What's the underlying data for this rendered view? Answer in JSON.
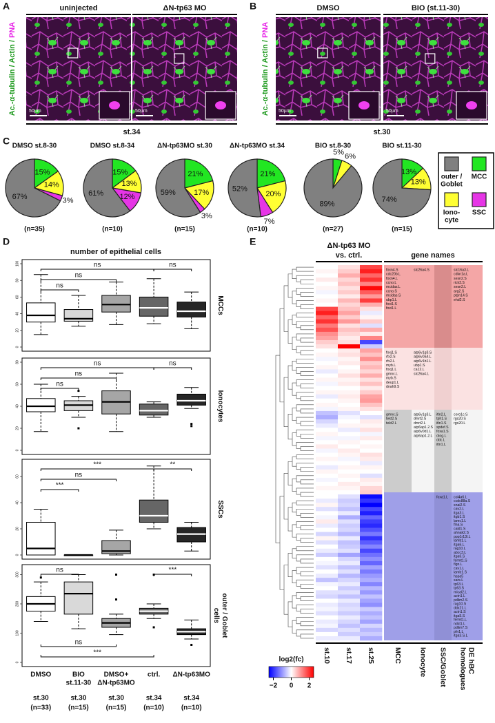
{
  "panel_labels": [
    "A",
    "B",
    "C",
    "D",
    "E"
  ],
  "panel_a": {
    "channel_label": [
      {
        "text": "Ac.-α-tubulin / Actin /",
        "color": "#1f9a1f"
      },
      {
        "text": " PNA",
        "color": "#e61ee6"
      }
    ],
    "images": [
      "uninjected",
      "ΔN-tp63 MO"
    ],
    "stage": "st.34",
    "scale_bar": "50µm"
  },
  "panel_b": {
    "channel_label": [
      {
        "text": "Ac.-α-tubulin / Actin /",
        "color": "#1f9a1f"
      },
      {
        "text": " PNA",
        "color": "#e61ee6"
      }
    ],
    "images": [
      "DMSO",
      "BIO (st.11-30)"
    ],
    "stage": "st.30",
    "scale_bar": "50µm"
  },
  "panel_c": {
    "legend": [
      {
        "lines": [
          "outer /",
          "Goblet"
        ],
        "color": "#808080"
      },
      {
        "lines": [
          "MCC"
        ],
        "color": "#22e622"
      },
      {
        "lines": [
          "Iono-",
          "cyte"
        ],
        "color": "#ffff33"
      },
      {
        "lines": [
          "SSC"
        ],
        "color": "#e635e6"
      }
    ]
  },
  "panel_d": {
    "title": "number of epithelial cells",
    "groups": [
      {
        "name": [
          "DMSO"
        ],
        "stage": "st.30",
        "n": "(n=33)",
        "color": "#ffffff"
      },
      {
        "name": [
          "BIO",
          "st.11-30"
        ],
        "stage": "st.30",
        "n": "(n=15)",
        "color": "#d9d9d9"
      },
      {
        "name": [
          "DMSO+",
          "ΔN-tp63MO"
        ],
        "stage": "st.30",
        "n": "(n=15)",
        "color": "#a6a6a6"
      },
      {
        "name": [
          "ctrl."
        ],
        "stage": "st.34",
        "n": "(n=10)",
        "color": "#666666"
      },
      {
        "name": [
          "ΔN-tp63MO"
        ],
        "stage": "st.34",
        "n": "(n=10)",
        "color": "#262626"
      }
    ]
  },
  "chart_data": [
    {
      "type": "pie",
      "title": "DMSO st.8-30",
      "note": "(n=35)",
      "values": [
        67,
        15,
        14,
        3
      ],
      "value_labels": [
        "67%",
        "15%",
        "14%",
        "3%"
      ]
    },
    {
      "type": "pie",
      "title": "DMSO st.8-34",
      "note": "(n=10)",
      "values": [
        61,
        15,
        13,
        12
      ],
      "value_labels": [
        "61%",
        "15%",
        "13%",
        "12%"
      ]
    },
    {
      "type": "pie",
      "title": "ΔN-tp63MO st.30",
      "note": "(n=15)",
      "values": [
        59,
        21,
        17,
        3
      ],
      "value_labels": [
        "59%",
        "21%",
        "17%",
        "3%"
      ]
    },
    {
      "type": "pie",
      "title": "ΔN-tp63MO st.34",
      "note": "(n=10)",
      "values": [
        52,
        21,
        20,
        7
      ],
      "value_labels": [
        "52%",
        "21%",
        "20%",
        "7%"
      ]
    },
    {
      "type": "pie",
      "title": "BIO st.8-30",
      "note": "(n=27)",
      "values": [
        89,
        5,
        6,
        null
      ],
      "value_labels": [
        "89%",
        "5%",
        "6%",
        null
      ]
    },
    {
      "type": "pie",
      "title": "BIO st.11-30",
      "note": "(n=15)",
      "values": [
        74,
        13,
        13,
        null
      ],
      "value_labels": [
        "74%",
        "13%",
        "13%",
        null
      ]
    },
    {
      "type": "box",
      "ylabel": [
        "MCCs"
      ],
      "ylim": [
        0,
        100
      ],
      "yticks": [
        0,
        20,
        40,
        60,
        80,
        100
      ],
      "boxes": [
        {
          "min": 15,
          "q1": 30,
          "median": 38,
          "q3": 53,
          "max": 87,
          "outliers": []
        },
        {
          "min": 25,
          "q1": 31,
          "median": 34,
          "q3": 45,
          "max": 62,
          "outliers": []
        },
        {
          "min": 27,
          "q1": 42,
          "median": 51,
          "q3": 62,
          "max": 78,
          "outliers": []
        },
        {
          "min": 28,
          "q1": 37,
          "median": 47,
          "q3": 60,
          "max": 82,
          "outliers": []
        },
        {
          "min": 22,
          "q1": 36,
          "median": 43,
          "q3": 54,
          "max": 66,
          "outliers": []
        }
      ],
      "comparisons": [
        {
          "groups": [
            0,
            3
          ],
          "label": "ns",
          "side": "above"
        },
        {
          "groups": [
            3,
            4
          ],
          "label": "ns",
          "side": "above"
        },
        {
          "groups": [
            0,
            2
          ],
          "label": "ns",
          "side": "above"
        },
        {
          "groups": [
            0,
            1
          ],
          "label": "ns",
          "side": "above"
        }
      ]
    },
    {
      "type": "box",
      "ylabel": [
        "Ionocytes"
      ],
      "ylim": [
        0,
        80
      ],
      "yticks": [
        0,
        20,
        40,
        60,
        80
      ],
      "boxes": [
        {
          "min": 17,
          "q1": 35,
          "median": 40,
          "q3": 47,
          "max": 60,
          "outliers": []
        },
        {
          "min": 30,
          "q1": 36,
          "median": 41,
          "q3": 45,
          "max": 49,
          "outliers": [
            20,
            54
          ]
        },
        {
          "min": 17,
          "q1": 33,
          "median": 44,
          "q3": 54,
          "max": 70,
          "outliers": []
        },
        {
          "min": 30,
          "q1": 32,
          "median": 36,
          "q3": 42,
          "max": 44,
          "outliers": []
        },
        {
          "min": 38,
          "q1": 41,
          "median": 45,
          "q3": 51,
          "max": 57,
          "outliers": [
            22,
            24
          ]
        }
      ],
      "comparisons": [
        {
          "groups": [
            0,
            3
          ],
          "label": "ns",
          "side": "above"
        },
        {
          "groups": [
            3,
            4
          ],
          "label": "ns",
          "side": "above"
        },
        {
          "groups": [
            0,
            2
          ],
          "label": "ns",
          "side": "above"
        },
        {
          "groups": [
            0,
            1
          ],
          "label": "ns",
          "side": "above"
        }
      ]
    },
    {
      "type": "box",
      "ylabel": [
        "SSCs"
      ],
      "ylim": [
        0,
        70
      ],
      "yticks": [
        0,
        20,
        40,
        60
      ],
      "boxes": [
        {
          "min": 0,
          "q1": 0,
          "median": 5,
          "q3": 25,
          "max": 35,
          "outliers": []
        },
        {
          "min": 0,
          "q1": 0,
          "median": 0,
          "q3": 0,
          "max": 0,
          "outliers": []
        },
        {
          "min": 0,
          "q1": 1,
          "median": 3,
          "q3": 11,
          "max": 19,
          "outliers": []
        },
        {
          "min": 20,
          "q1": 25,
          "median": 30,
          "q3": 42,
          "max": 68,
          "outliers": []
        },
        {
          "min": 3,
          "q1": 10,
          "median": 16,
          "q3": 21,
          "max": 25,
          "outliers": []
        }
      ],
      "comparisons": [
        {
          "groups": [
            3,
            4
          ],
          "label": "**",
          "side": "above"
        },
        {
          "groups": [
            0,
            3
          ],
          "label": "***",
          "side": "above"
        },
        {
          "groups": [
            0,
            2
          ],
          "label": "ns",
          "side": "above"
        },
        {
          "groups": [
            0,
            1
          ],
          "label": "***",
          "side": "above"
        }
      ]
    },
    {
      "type": "box",
      "ylabel": [
        "outer / Goblet",
        "cells"
      ],
      "ylim": [
        0,
        320
      ],
      "yticks": [
        0,
        100,
        200,
        300
      ],
      "boxes": [
        {
          "min": 140,
          "q1": 175,
          "median": 200,
          "q3": 225,
          "max": 275,
          "outliers": [
            290
          ]
        },
        {
          "min": 115,
          "q1": 165,
          "median": 235,
          "q3": 275,
          "max": 300,
          "outliers": []
        },
        {
          "min": 95,
          "q1": 120,
          "median": 135,
          "q3": 150,
          "max": 165,
          "outliers": [
            300,
            215
          ]
        },
        {
          "min": 150,
          "q1": 165,
          "median": 175,
          "q3": 185,
          "max": 200,
          "outliers": [
            300,
            120
          ]
        },
        {
          "min": 80,
          "q1": 95,
          "median": 105,
          "q3": 115,
          "max": 145,
          "outliers": [
            60
          ]
        }
      ],
      "comparisons": [
        {
          "groups": [
            0,
            1
          ],
          "label": "ns",
          "side": "above"
        },
        {
          "groups": [
            3,
            4
          ],
          "label": "***",
          "side": "above"
        },
        {
          "groups": [
            0,
            3
          ],
          "label": "***",
          "side": "below"
        },
        {
          "groups": [
            0,
            2
          ],
          "label": "ns",
          "side": "below"
        }
      ]
    }
  ],
  "panel_e": {
    "title": "ΔN-tp63 MO",
    "subtitle": "vs. ctrl.",
    "gene_header": "gene names",
    "columns": [
      "st.10",
      "st.17",
      "st.25"
    ],
    "legend_title": "log2(fc)",
    "clim": [
      -2.5,
      2.5
    ],
    "cticks": [
      {
        "value": -2,
        "label": "−2"
      },
      0,
      2
    ],
    "gene_columns": [
      {
        "label": [
          "MCC"
        ],
        "blocks": [
          [
            "foxn4.S",
            "cdc20b.L",
            "foxn4.L",
            "ccno.L",
            "mcidas.L",
            "ccno.S",
            "mcidas.S",
            "ubp1.L",
            "foxi1.S",
            "foxi1.L"
          ],
          [
            "foxj1.S",
            "rfx2.S",
            "rfx2.L",
            "myb.L",
            "foxj1.L",
            "gmnc.L",
            "myb.S",
            "deup1.L",
            "dnah9.S"
          ],
          [
            "gmnc.S",
            "tekt2.S",
            "tekt2.L"
          ],
          []
        ]
      },
      {
        "label": [
          "Ionocyte"
        ],
        "blocks": [
          [
            "slc26a4.S"
          ],
          [
            "atp6v1g3.S",
            "atp6v0a4.L",
            "atp6v1b1.L",
            "ubp1.S",
            "ca12.L",
            "slc26a4.L"
          ],
          [
            "atp6v1g3.L",
            "dmrt2.S",
            "dmrt2.L",
            "atp6ap1.2.S",
            "atp6v0d1.L",
            "atp6ap1.2.L"
          ],
          []
        ]
      },
      {
        "label": [
          "SSC/Goblet"
        ],
        "blocks": [
          [],
          [],
          [
            "itln2.L",
            "tph1.S",
            "itln1.S",
            "spdef.S",
            "foxa1.S",
            "otog.L",
            "ddc.L",
            "itln1.L"
          ],
          [
            "foxa1.L"
          ]
        ]
      },
      {
        "label": [
          "DE hBC",
          "homologues"
        ],
        "blocks": [
          [
            "slc16a3.L",
            "cdkn1a.L",
            "sesn2.S",
            "rick3.S",
            "sesn2.L",
            "arg2.S",
            "ptpn14.S",
            "ehd2.S"
          ],
          [],
          [
            "coro1c.S",
            "rgs20.S",
            "rgs20.L"
          ],
          [
            "col4a6.L",
            "ccdc88a.S",
            "snai2.S",
            "cav2.L",
            "itga3.L",
            "itgb1.S",
            "lamc1.L",
            "flna.S",
            "cald1.S",
            "ahnak2.S",
            "ppp1r13l.L",
            "lamb1.L",
            "itga6.L",
            "rag10.L",
            "abcc3.L",
            "itga6.S",
            "fermt1.S",
            "flgn.L",
            "cav1.L",
            "lamb1.S",
            "hspa5",
            "sars.L",
            "tp63.L",
            "tp63.S",
            "mical2.L",
            "actn1.L",
            "pdlim2.S",
            "rag10.S",
            "ddx21.L",
            "actn1.S",
            "itga5.S",
            "fermt1.L",
            "ndst1.L",
            "pdlim7.S",
            "pfn1.L",
            "itga3.S.L"
          ]
        ]
      }
    ],
    "values": [
      [
        0,
        0.3,
        1.8
      ],
      [
        0.1,
        0.5,
        2.2
      ],
      [
        0,
        0.8,
        1.5
      ],
      [
        0.2,
        0.4,
        2.0
      ],
      [
        0,
        0.6,
        1.2
      ],
      [
        0.1,
        0.3,
        2.4
      ],
      [
        -0.1,
        0.5,
        1.6
      ],
      [
        0,
        0.2,
        1.0
      ],
      [
        0.1,
        0.7,
        1.9
      ],
      [
        0,
        0.4,
        0.8
      ],
      [
        1.8,
        0.6,
        0.3
      ],
      [
        2.2,
        0.9,
        -0.2
      ],
      [
        1.5,
        0.5,
        0.1
      ],
      [
        2.0,
        1.0,
        0.5
      ],
      [
        1.3,
        0.3,
        -0.3
      ],
      [
        1.7,
        0.6,
        0.8
      ],
      [
        1.1,
        0.4,
        0.2
      ],
      [
        0.9,
        0.2,
        1.2
      ],
      [
        0.5,
        0.3,
        -1.8
      ],
      [
        0.3,
        2.5,
        -0.5
      ],
      [
        0,
        0.2,
        0.9
      ],
      [
        0.1,
        0.3,
        0.6
      ],
      [
        -0.1,
        0.1,
        1.1
      ],
      [
        0,
        0.2,
        0.5
      ],
      [
        0.1,
        0,
        0.7
      ],
      [
        -0.2,
        0.1,
        0.4
      ],
      [
        0,
        0.3,
        0.8
      ],
      [
        0.1,
        0.1,
        0.3
      ],
      [
        -0.1,
        0.2,
        0.6
      ],
      [
        0,
        0,
        0.2
      ],
      [
        0.1,
        0.1,
        0.5
      ],
      [
        -0.2,
        0.2,
        0.9
      ],
      [
        0,
        0.1,
        1.0
      ],
      [
        0.1,
        0,
        0.6
      ],
      [
        -0.1,
        0.1,
        0.3
      ],
      [
        -0.6,
        -0.3,
        0
      ],
      [
        -0.8,
        -0.1,
        -0.3
      ],
      [
        -0.4,
        0,
        0.2
      ],
      [
        -0.2,
        0.1,
        0.1
      ],
      [
        0,
        -0.2,
        0.3
      ],
      [
        0.1,
        0,
        -0.1
      ],
      [
        -0.1,
        -0.1,
        0.2
      ],
      [
        0,
        0.1,
        0
      ],
      [
        0.2,
        0,
        0.1
      ],
      [
        -0.1,
        0.2,
        0
      ],
      [
        0,
        0.1,
        0.3
      ],
      [
        0.1,
        -0.1,
        0.2
      ],
      [
        0,
        0,
        -0.2
      ],
      [
        -0.2,
        0.1,
        0.1
      ],
      [
        0.1,
        0,
        0
      ],
      [
        0,
        0.1,
        -0.3
      ],
      [
        -0.1,
        0,
        0.2
      ],
      [
        0,
        0.2,
        0.1
      ],
      [
        0.1,
        0.1,
        0.4
      ],
      [
        0,
        0,
        0.5
      ],
      [
        0,
        -0.3,
        -2.4
      ],
      [
        -0.2,
        -0.5,
        -2.0
      ],
      [
        0.1,
        -0.4,
        -2.6
      ],
      [
        -0.3,
        -0.6,
        -1.8
      ],
      [
        0,
        -0.2,
        -2.2
      ],
      [
        -0.1,
        -0.8,
        -1.5
      ],
      [
        0.2,
        -0.3,
        -1.9
      ],
      [
        -0.2,
        -0.5,
        -2.1
      ],
      [
        0,
        -0.4,
        -1.7
      ],
      [
        -0.4,
        -0.7,
        -1.3
      ],
      [
        0.1,
        -0.2,
        -2.0
      ],
      [
        -0.3,
        -0.6,
        -1.6
      ],
      [
        0,
        -0.5,
        -1.2
      ],
      [
        -0.2,
        -0.3,
        -1.8
      ],
      [
        -0.5,
        -0.9,
        -1.4
      ],
      [
        0,
        -0.4,
        -1.1
      ],
      [
        -0.1,
        -0.2,
        -1.5
      ],
      [
        -0.3,
        -0.6,
        -0.9
      ],
      [
        0,
        -0.3,
        -1.3
      ],
      [
        -0.2,
        -0.7,
        -1.0
      ],
      [
        -0.6,
        -0.4,
        -0.8
      ],
      [
        -0.1,
        -0.2,
        -1.2
      ],
      [
        0,
        -0.5,
        -0.7
      ],
      [
        -0.3,
        -0.3,
        -1.0
      ],
      [
        -0.4,
        -0.6,
        -0.6
      ],
      [
        0,
        -0.2,
        -0.9
      ],
      [
        -0.2,
        -0.4,
        -1.1
      ],
      [
        -0.1,
        -0.3,
        -0.5
      ],
      [
        -0.3,
        -0.5,
        -0.8
      ],
      [
        0,
        -0.2,
        -0.6
      ],
      [
        -0.2,
        -0.4,
        -0.9
      ],
      [
        -0.1,
        -0.6,
        -0.4
      ],
      [
        -0.4,
        -0.3,
        -0.7
      ],
      [
        0,
        -0.5,
        -0.5
      ],
      [
        -0.2,
        -0.2,
        -0.8
      ]
    ]
  }
}
